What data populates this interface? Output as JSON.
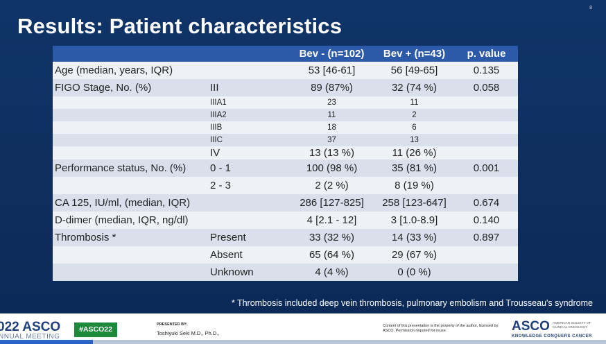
{
  "slide": {
    "page_number": "8",
    "title": "Results: Patient characteristics",
    "footnote": "* Thrombosis included deep vein thrombosis, pulmonary embolism and Trousseau's syndrome"
  },
  "table": {
    "headers": [
      "",
      "",
      "Bev -  (n=102)",
      "Bev +  (n=43)",
      "p. value"
    ],
    "rows": [
      {
        "label": "Age (median, years, IQR)",
        "sub": "",
        "bev_minus": "53 [46-61]",
        "bev_plus": "56 [49-65]",
        "p": "0.135"
      },
      {
        "label": "FIGO Stage, No. (%)",
        "sub": "III",
        "bev_minus": "89 (87%)",
        "bev_plus": "32 (74 %)",
        "p": "0.058"
      },
      {
        "label": "",
        "sub": "IIIA1",
        "bev_minus": "23",
        "bev_plus": "11",
        "p": ""
      },
      {
        "label": "",
        "sub": "IIIA2",
        "bev_minus": "11",
        "bev_plus": "2",
        "p": ""
      },
      {
        "label": "",
        "sub": "IIIB",
        "bev_minus": "18",
        "bev_plus": "6",
        "p": ""
      },
      {
        "label": "",
        "sub": "IIIC",
        "bev_minus": "37",
        "bev_plus": "13",
        "p": ""
      },
      {
        "label": "",
        "sub": "IV",
        "bev_minus": "13 (13 %)",
        "bev_plus": "11 (26 %)",
        "p": ""
      },
      {
        "label": "Performance status, No. (%)",
        "sub": "0 - 1",
        "bev_minus": "100 (98 %)",
        "bev_plus": "35 (81 %)",
        "p": "0.001"
      },
      {
        "label": "",
        "sub": "2 - 3",
        "bev_minus": "2 (2 %)",
        "bev_plus": "8 (19 %)",
        "p": ""
      },
      {
        "label": "CA 125, IU/ml, (median, IQR)",
        "sub": "",
        "bev_minus": "286 [127-825]",
        "bev_plus": "258 [123-647]",
        "p": "0.674"
      },
      {
        "label": "D-dimer  (median, IQR, ng/dl)",
        "sub": "",
        "bev_minus": "4 [2.1 - 12]",
        "bev_plus": "3 [1.0-8.9]",
        "p": "0.140"
      },
      {
        "label": "Thrombosis *",
        "sub": "Present",
        "bev_minus": "33 (32 %)",
        "bev_plus": "14 (33 %)",
        "p": "0.897"
      },
      {
        "label": "",
        "sub": "Absent",
        "bev_minus": "65 (64 %)",
        "bev_plus": "29 (67 %)",
        "p": ""
      },
      {
        "label": "",
        "sub": "Unknown",
        "bev_minus": "4 (4 %)",
        "bev_plus": "0 (0 %)",
        "p": ""
      }
    ]
  },
  "footer": {
    "meeting_logo": "022 ASCO",
    "meeting_sub": "NNUAL MEETING",
    "hashtag": "#ASCO22",
    "presented_by_label": "PRESENTED BY:",
    "presenter": "Toshiyuki Seki M.D., Ph.D.,",
    "content_note": "Content of this presentation is the property of the author, licensed by ASCO. Permission required for reuse.",
    "asco_logo": "ASCO",
    "asco_sub": "AMERICAN SOCIETY OF CLINICAL ONCOLOGY",
    "tagline": "KNOWLEDGE CONQUERS CANCER",
    "colors": {
      "header": "#2d5aa8",
      "band_dark": "#d9e0ec",
      "band_light": "#eef1f6",
      "background": "#0e2d5c",
      "hashtag_green": "#1d8a3b"
    }
  }
}
